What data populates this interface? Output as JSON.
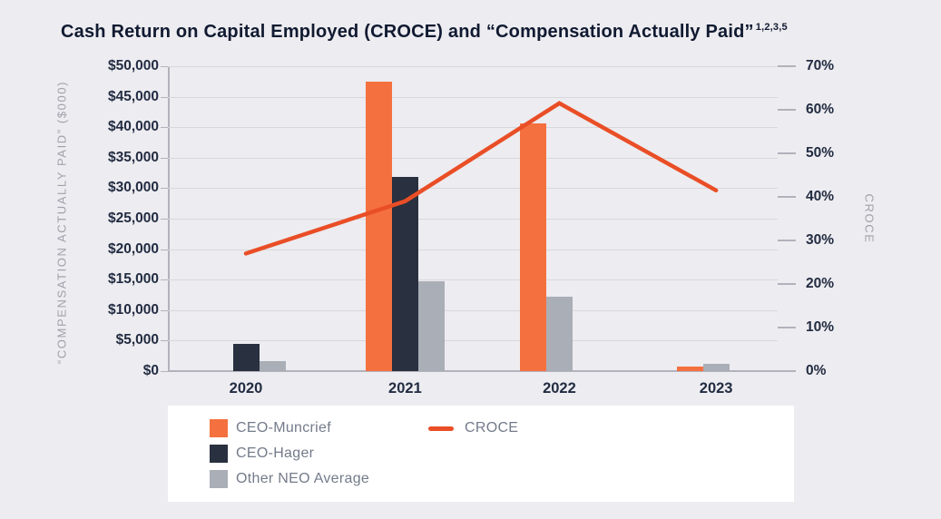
{
  "title": {
    "text": "Cash Return on Capital Employed (CROCE) and “Compensation Actually Paid”",
    "superscript": "1,2,3,5"
  },
  "colors": {
    "muncrief": "#F4713F",
    "hager": "#29303F",
    "other": "#A9AEB7",
    "croce_line": "#E94E26",
    "background": "#EDECF0",
    "legend_background": "#FFFFFF",
    "gridline": "#D8D7DB",
    "axis": "#B2B2BC",
    "tick_label_text": "#222C42",
    "axis_title_text": "#A1A1AC",
    "legend_text": "#737B8A",
    "title_text": "#101A31"
  },
  "chart_data": {
    "type": "bar+line combo, dual axis",
    "categories": [
      "2020",
      "2021",
      "2022",
      "2023"
    ],
    "series": [
      {
        "name": "CEO-Muncrief",
        "type": "bar",
        "color_key": "muncrief",
        "axis": "left",
        "values": [
          0,
          47500,
          40600,
          750
        ]
      },
      {
        "name": "CEO-Hager",
        "type": "bar",
        "color_key": "hager",
        "axis": "left",
        "values": [
          4500,
          31800,
          0,
          0
        ]
      },
      {
        "name": "Other NEO Average",
        "type": "bar",
        "color_key": "other",
        "axis": "left",
        "values": [
          1700,
          14800,
          12200,
          1150
        ]
      },
      {
        "name": "CROCE",
        "type": "line",
        "color_key": "croce_line",
        "axis": "right",
        "values": [
          27,
          39,
          61.5,
          41.5
        ]
      }
    ],
    "left_axis": {
      "title": "“COMPENSATION ACTUALLY PAID” ($000)",
      "min": 0,
      "max": 50000,
      "step": 5000,
      "tick_labels_top_to_bottom": [
        "$50,000",
        "$45,000",
        "$40,000",
        "$35,000",
        "$30,000",
        "$25,000",
        "$20,000",
        "$15,000",
        "$10,000",
        "$5,000",
        "$0"
      ]
    },
    "right_axis": {
      "title": "CROCE",
      "min": 0,
      "max": 70,
      "step": 10,
      "tick_labels_top_to_bottom": [
        "70%",
        "60%",
        "50%",
        "40%",
        "30%",
        "20%",
        "10%",
        "0%"
      ]
    },
    "grid": "horizontal gridlines at left-axis steps",
    "legend_position": "bottom, white box, two columns"
  },
  "legend": {
    "items": [
      {
        "label": "CEO-Muncrief",
        "swatch": "square",
        "color_key": "muncrief"
      },
      {
        "label": "CEO-Hager",
        "swatch": "square",
        "color_key": "hager"
      },
      {
        "label": "Other NEO Average",
        "swatch": "square",
        "color_key": "other"
      },
      {
        "label": "CROCE",
        "swatch": "line",
        "color_key": "croce_line"
      }
    ]
  }
}
